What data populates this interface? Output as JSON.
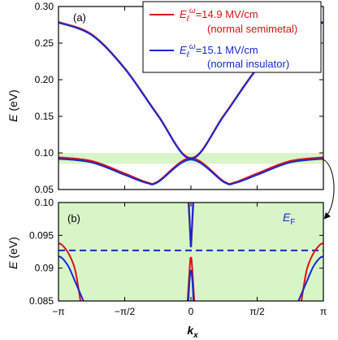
{
  "chart_data": [
    {
      "panel": "(a)",
      "type": "line",
      "xlabel": "",
      "ylabel": "E (eV)",
      "xlim": [
        -3.14159,
        3.14159
      ],
      "ylim": [
        0.05,
        0.3
      ],
      "yticks": [
        0.05,
        0.1,
        0.15,
        0.2,
        0.25,
        0.3
      ],
      "ytick_labels": [
        "0.05",
        "0.10",
        "0.15",
        "0.20",
        "0.25",
        "0.30"
      ],
      "highlight_band": [
        0.085,
        0.1
      ],
      "legend": {
        "placement": "top-right",
        "entries": [
          {
            "label": "E_ℓ^ω=14.9 MV/cm",
            "note": "(normal semimetal)",
            "color": "#e01010"
          },
          {
            "label": "E_ℓ^ω=15.1 MV/cm",
            "note": "(normal insulator)",
            "color": "#1428d8"
          }
        ]
      },
      "series": [
        {
          "name": "E_ℓ^ω=14.9 MV/cm",
          "color": "#e01010",
          "upper_band": {
            "x": [
              -3.1416,
              -2.356,
              -1.571,
              -0.785,
              0,
              0.785,
              1.571,
              2.356,
              3.1416
            ],
            "y": [
              0.279,
              0.262,
              0.216,
              0.152,
              0.093,
              0.152,
              0.216,
              0.262,
              0.279
            ]
          },
          "lower_band": {
            "x": [
              -3.1416,
              -2.356,
              -1.571,
              -1.05,
              -0.785,
              0,
              0.785,
              1.05,
              1.571,
              2.356,
              3.1416
            ],
            "y": [
              0.094,
              0.089,
              0.072,
              0.06,
              0.061,
              0.093,
              0.061,
              0.06,
              0.072,
              0.089,
              0.094
            ]
          }
        },
        {
          "name": "E_ℓ^ω=15.1 MV/cm",
          "color": "#1428d8",
          "upper_band": {
            "x": [
              -3.1416,
              -2.356,
              -1.571,
              -0.785,
              0,
              0.785,
              1.571,
              2.356,
              3.1416
            ],
            "y": [
              0.278,
              0.261,
              0.215,
              0.151,
              0.092,
              0.151,
              0.215,
              0.261,
              0.278
            ]
          },
          "lower_band": {
            "x": [
              -3.1416,
              -2.356,
              -1.571,
              -1.05,
              -0.785,
              0,
              0.785,
              1.05,
              1.571,
              2.356,
              3.1416
            ],
            "y": [
              0.092,
              0.087,
              0.07,
              0.059,
              0.06,
              0.091,
              0.06,
              0.059,
              0.07,
              0.087,
              0.092
            ]
          }
        }
      ]
    },
    {
      "panel": "(b)",
      "type": "line",
      "xlabel": "k_x",
      "ylabel": "E (eV)",
      "xlim": [
        -3.14159,
        3.14159
      ],
      "ylim": [
        0.085,
        0.1
      ],
      "xticks": [
        -3.14159,
        -1.5708,
        0,
        1.5708,
        3.14159
      ],
      "xtick_labels": [
        "−π",
        "−π/2",
        "0",
        "π/2",
        "π"
      ],
      "yticks": [
        0.085,
        0.09,
        0.095,
        0.1
      ],
      "ytick_labels": [
        "0.085",
        "0.09",
        "0.095",
        "0.10"
      ],
      "fermi_level": {
        "label": "E_F",
        "value": 0.0927,
        "color": "#1428d8"
      },
      "series": [
        {
          "name": "E_ℓ^ω=14.9 MV/cm",
          "color": "#e01010",
          "segments": [
            {
              "x": [
                -3.1416,
                -3.05,
                -2.9,
                -2.75,
                -2.62
              ],
              "y": [
                0.0938,
                0.0935,
                0.0922,
                0.0898,
                0.085
              ]
            },
            {
              "x": [
                2.62,
                2.75,
                2.9,
                3.05,
                3.1416
              ],
              "y": [
                0.085,
                0.0898,
                0.0922,
                0.0935,
                0.0938
              ]
            },
            {
              "x": [
                -0.08,
                -0.04,
                -0.015,
                0
              ],
              "y": [
                0.085,
                0.089,
                0.0913,
                0.0917
              ]
            },
            {
              "x": [
                0,
                0.015,
                0.04,
                0.08
              ],
              "y": [
                0.0917,
                0.0913,
                0.089,
                0.085
              ]
            },
            {
              "x": [
                -0.06,
                -0.03,
                -0.008,
                0
              ],
              "y": [
                0.1,
                0.0965,
                0.0937,
                0.0932
              ]
            },
            {
              "x": [
                0,
                0.008,
                0.03,
                0.06
              ],
              "y": [
                0.0932,
                0.0937,
                0.0965,
                0.1
              ]
            }
          ]
        },
        {
          "name": "E_ℓ^ω=15.1 MV/cm",
          "color": "#1428d8",
          "segments": [
            {
              "x": [
                -3.1416,
                -3.05,
                -2.9,
                -2.75,
                -2.55
              ],
              "y": [
                0.0918,
                0.0915,
                0.0902,
                0.088,
                0.085
              ]
            },
            {
              "x": [
                2.55,
                2.75,
                2.9,
                3.05,
                3.1416
              ],
              "y": [
                0.085,
                0.088,
                0.0902,
                0.0915,
                0.0918
              ]
            },
            {
              "x": [
                -0.06,
                -0.035,
                -0.012,
                0
              ],
              "y": [
                0.085,
                0.088,
                0.0895,
                0.0897
              ]
            },
            {
              "x": [
                0,
                0.012,
                0.035,
                0.06
              ],
              "y": [
                0.0897,
                0.0895,
                0.088,
                0.085
              ]
            },
            {
              "x": [
                -0.05,
                -0.025,
                -0.006,
                0
              ],
              "y": [
                0.1,
                0.0965,
                0.0936,
                0.0932
              ]
            },
            {
              "x": [
                0,
                0.006,
                0.025,
                0.05
              ],
              "y": [
                0.0932,
                0.0936,
                0.0965,
                0.1
              ]
            }
          ]
        }
      ]
    }
  ],
  "colors": {
    "band_highlight": "#d8f5c8",
    "red": "#e01010",
    "blue": "#1428d8"
  }
}
